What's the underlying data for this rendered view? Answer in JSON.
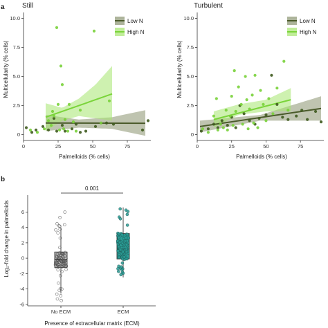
{
  "panel_labels": {
    "top": "a",
    "bottom": "b"
  },
  "legend": {
    "title": "",
    "low": "Low N",
    "high": "High N"
  },
  "colors": {
    "low_line": "#4a5a2a",
    "low_band": "#8a9470",
    "high_line": "#7ad43a",
    "high_band": "#a6e56f",
    "low_point": "#3e5a1e",
    "high_point": "#79d13a",
    "box_noecm": "#c8c8c8",
    "box_ecm": "#2a9d96"
  },
  "chart_data": [
    {
      "type": "scatter",
      "title": "Still",
      "xlabel": "Palmelloids (% cells)",
      "ylabel": "Multicellularity (% cells)",
      "xlim": [
        0,
        92
      ],
      "ylim": [
        -0.5,
        10.5
      ],
      "xticks": [
        0,
        25,
        50,
        75
      ],
      "yticks": [
        0,
        2.5,
        5.0,
        7.5,
        10.0
      ],
      "ytick_labels": [
        "0",
        "2.5",
        "5.0",
        "7.5",
        "10.0"
      ],
      "grid": false,
      "legend_position": "top-right",
      "series": [
        {
          "name": "Low N",
          "points": [
            [
              2,
              0.6
            ],
            [
              6,
              0.2
            ],
            [
              9,
              0.4
            ],
            [
              14,
              0.7
            ],
            [
              18,
              0.4
            ],
            [
              22,
              1.4
            ],
            [
              24,
              0.3
            ],
            [
              28,
              0.8
            ],
            [
              30,
              0.3
            ],
            [
              35,
              0.5
            ],
            [
              38,
              0.9
            ],
            [
              41,
              0.2
            ],
            [
              45,
              0.3
            ],
            [
              52,
              0.7
            ],
            [
              60,
              1.0
            ],
            [
              65,
              0.9
            ],
            [
              86,
              0.4
            ],
            [
              90,
              1.2
            ]
          ],
          "fit": {
            "x": [
              16,
              88
            ],
            "y": [
              1.0,
              0.98
            ]
          },
          "band": {
            "x": [
              16,
              40,
              64,
              88
            ],
            "lower": [
              0.3,
              0.6,
              0.5,
              -0.1
            ],
            "upper": [
              1.7,
              1.3,
              1.5,
              2.1
            ]
          }
        },
        {
          "name": "High N",
          "points": [
            [
              5,
              0.4
            ],
            [
              10,
              0.2
            ],
            [
              15,
              0.5
            ],
            [
              18,
              1.2
            ],
            [
              20,
              0.8
            ],
            [
              21,
              2.0
            ],
            [
              22,
              1.6
            ],
            [
              24,
              9.2
            ],
            [
              25,
              2.6
            ],
            [
              26,
              0.4
            ],
            [
              27,
              5.9
            ],
            [
              28,
              4.3
            ],
            [
              29,
              0.5
            ],
            [
              30,
              1.3
            ],
            [
              32,
              0.3
            ],
            [
              33,
              2.6
            ],
            [
              36,
              1.1
            ],
            [
              38,
              0.3
            ],
            [
              41,
              2.1
            ],
            [
              51,
              8.9
            ],
            [
              56,
              1.0
            ],
            [
              62,
              2.9
            ]
          ],
          "fit": {
            "x": [
              16,
              64
            ],
            "y": [
              1.5,
              3.5
            ]
          },
          "band": {
            "x": [
              16,
              28,
              40,
              52,
              64
            ],
            "lower": [
              0.3,
              1.2,
              1.6,
              1.4,
              1.2
            ],
            "upper": [
              2.7,
              2.3,
              3.1,
              4.3,
              5.9
            ]
          }
        }
      ]
    },
    {
      "type": "scatter",
      "title": "Turbulent",
      "xlabel": "Palmelloids (% cells)",
      "ylabel": "Multicellularity (% cells)",
      "xlim": [
        0,
        92
      ],
      "ylim": [
        -0.5,
        10.5
      ],
      "xticks": [
        0,
        25,
        50,
        75
      ],
      "yticks": [
        0,
        2.5,
        5.0,
        7.5,
        10.0
      ],
      "ytick_labels": [
        "0",
        "2.5",
        "5.0",
        "7.5",
        "10.0"
      ],
      "grid": false,
      "legend_position": "top-right",
      "series": [
        {
          "name": "Low N",
          "points": [
            [
              3,
              0.3
            ],
            [
              8,
              0.5
            ],
            [
              12,
              0.9
            ],
            [
              15,
              0.6
            ],
            [
              18,
              1.2
            ],
            [
              22,
              0.8
            ],
            [
              25,
              1.5
            ],
            [
              28,
              0.6
            ],
            [
              31,
              2.5
            ],
            [
              34,
              1.8
            ],
            [
              38,
              1.2
            ],
            [
              42,
              0.9
            ],
            [
              45,
              1.4
            ],
            [
              50,
              1.7
            ],
            [
              54,
              5.1
            ],
            [
              58,
              2.6
            ],
            [
              62,
              1.5
            ],
            [
              66,
              1.3
            ],
            [
              72,
              1.6
            ],
            [
              76,
              2.1
            ],
            [
              80,
              1.3
            ],
            [
              86,
              2.0
            ],
            [
              90,
              1.1
            ]
          ],
          "fit": {
            "x": [
              2,
              90
            ],
            "y": [
              0.7,
              2.25
            ]
          },
          "band": {
            "x": [
              2,
              46,
              90
            ],
            "lower": [
              0.2,
              1.2,
              1.2
            ],
            "upper": [
              1.2,
              1.7,
              3.3
            ]
          }
        },
        {
          "name": "High N",
          "points": [
            [
              4,
              0.5
            ],
            [
              8,
              0.2
            ],
            [
              12,
              1.6
            ],
            [
              14,
              3.1
            ],
            [
              15,
              0.4
            ],
            [
              17,
              0.9
            ],
            [
              19,
              0.6
            ],
            [
              21,
              2.1
            ],
            [
              22,
              0.4
            ],
            [
              24,
              1.6
            ],
            [
              25,
              3.3
            ],
            [
              26,
              0.8
            ],
            [
              27,
              5.5
            ],
            [
              28,
              2.0
            ],
            [
              30,
              4.1
            ],
            [
              32,
              2.6
            ],
            [
              33,
              0.9
            ],
            [
              35,
              5.0
            ],
            [
              36,
              3.0
            ],
            [
              37,
              0.5
            ],
            [
              38,
              2.2
            ],
            [
              40,
              3.4
            ],
            [
              41,
              1.0
            ],
            [
              42,
              5.1
            ],
            [
              44,
              0.6
            ],
            [
              46,
              3.8
            ],
            [
              48,
              2.6
            ],
            [
              50,
              1.2
            ],
            [
              52,
              3.1
            ],
            [
              55,
              1.8
            ],
            [
              58,
              4.0
            ],
            [
              63,
              6.3
            ],
            [
              66,
              2.1
            ]
          ],
          "fit": {
            "x": [
              12,
              68
            ],
            "y": [
              1.3,
              3.0
            ]
          },
          "band": {
            "x": [
              12,
              30,
              50,
              68
            ],
            "lower": [
              0.6,
              1.7,
              2.0,
              2.0
            ],
            "upper": [
              2.0,
              2.6,
              3.0,
              4.0
            ]
          }
        }
      ]
    },
    {
      "type": "box",
      "title": "",
      "xlabel": "Presence of extracellular matrix (ECM)",
      "ylabel": "Log₂-fold change in palmelloids",
      "categories": [
        "No ECM",
        "ECM"
      ],
      "ylim": [
        -6.2,
        8.2
      ],
      "yticks": [
        -6,
        -4,
        -2,
        0,
        2,
        4,
        6
      ],
      "grid": false,
      "p_value": "0.001",
      "boxes": [
        {
          "name": "No ECM",
          "whisker_low": -4.6,
          "q1": -1.2,
          "median": -0.2,
          "q3": 0.8,
          "whisker_high": 4.0
        },
        {
          "name": "ECM",
          "whisker_low": -2.5,
          "q1": -0.1,
          "median": 1.2,
          "q3": 3.2,
          "whisker_high": 6.6
        }
      ],
      "point_ranges": [
        {
          "name": "No ECM",
          "min": -5.6,
          "max": 6.4,
          "n": 95
        },
        {
          "name": "ECM",
          "min": -2.6,
          "max": 6.8,
          "n": 95
        }
      ]
    }
  ]
}
